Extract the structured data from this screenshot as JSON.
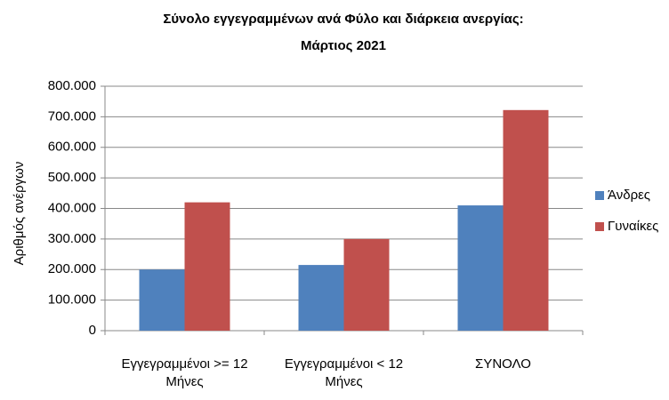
{
  "chart_data": {
    "type": "bar",
    "title": "Σύνολο εγγεγραμμένων  ανά Φύλο και διάρκεια ανεργίας:",
    "subtitle": "Μάρτιος  2021",
    "y_label": "Αριθμός ανέργων",
    "categories": [
      "Εγγεγραμμένοι >= 12 Μήνες",
      "Εγγεγραμμένοι <  12 Μήνες",
      "ΣΥΝΟΛΟ"
    ],
    "series": [
      {
        "name": "Άνδρες",
        "color": "#4f81bd",
        "values": [
          200000,
          215000,
          410000
        ]
      },
      {
        "name": "Γυναίκες",
        "color": "#c0504d",
        "values": [
          420000,
          300000,
          722000
        ]
      }
    ],
    "ylim": [
      0,
      800000
    ],
    "yticks": [
      0,
      {
        "value": 100000,
        "label": "100.000"
      },
      {
        "value": 200000,
        "label": "200.000"
      },
      {
        "value": 300000,
        "label": "300.000"
      },
      {
        "value": 400000,
        "label": "400.000"
      },
      {
        "value": 500000,
        "label": "500.000"
      },
      {
        "value": 600000,
        "label": "600.000"
      },
      {
        "value": 700000,
        "label": "700.000"
      },
      {
        "value": 800000,
        "label": "800.000"
      }
    ],
    "grid": true,
    "legend": "right"
  }
}
